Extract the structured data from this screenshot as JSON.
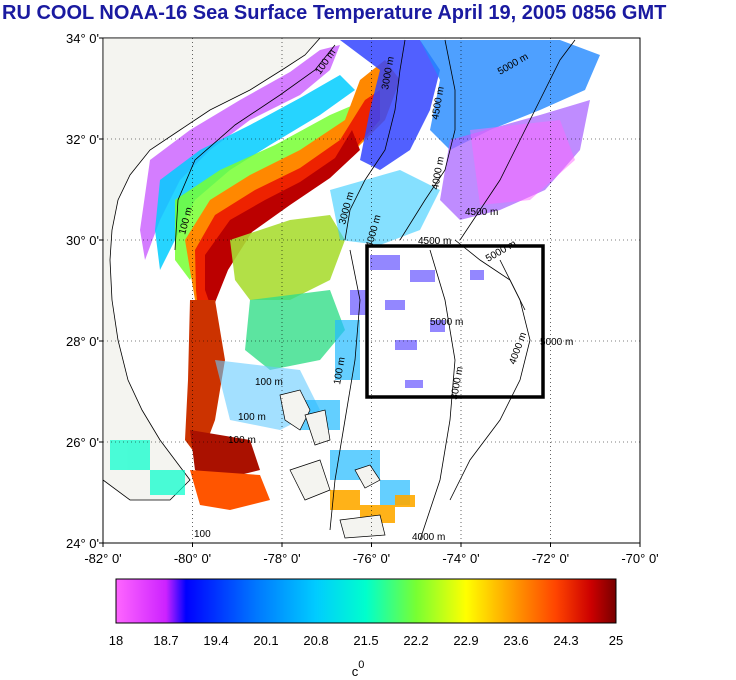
{
  "title": "RU COOL  NOAA-16 Sea Surface Temperature April 19, 2005 0856 GMT",
  "map": {
    "lon_range": [
      -82,
      -70
    ],
    "lat_range": [
      24,
      34
    ],
    "lon_ticks": [
      "-82° 0'",
      "-80° 0'",
      "-78° 0'",
      "-76° 0'",
      "-74° 0'",
      "-72° 0'",
      "-70° 0'"
    ],
    "lat_ticks": [
      "34° 0'",
      "32° 0'",
      "30° 0'",
      "28° 0'",
      "26° 0'",
      "24° 0'"
    ],
    "study_box": {
      "lon": [
        -76,
        -72
      ],
      "lat": [
        27,
        30
      ]
    },
    "contour_labels": [
      "100 m",
      "3000 m",
      "5000 m",
      "4500 m",
      "4000 m",
      "3000 m",
      "100 m",
      "4500 m",
      "4000 m",
      "5000 m",
      "4500 m",
      "5000 m",
      "5000 m",
      "4000 m",
      "3000 m",
      "100 m",
      "100 m",
      "100 m",
      "100 m",
      "4000 m",
      "100"
    ]
  },
  "colorbar": {
    "tick_labels": [
      "18",
      "18.7",
      "19.4",
      "20.1",
      "20.8",
      "21.5",
      "22.2",
      "22.9",
      "23.6",
      "24.3",
      "25"
    ],
    "min": 18,
    "max": 25,
    "colors": [
      "#ff66ff",
      "#cc22ff",
      "#0000ff",
      "#0077ff",
      "#00ccff",
      "#00ffcc",
      "#77ff33",
      "#ffff00",
      "#ffaa00",
      "#ff4400",
      "#cc0000",
      "#770000"
    ],
    "unit": "c",
    "unit_sup": "0"
  },
  "colors": {
    "title": "#1a1aa0",
    "land": "#f4f4f0",
    "box": "#000000"
  }
}
